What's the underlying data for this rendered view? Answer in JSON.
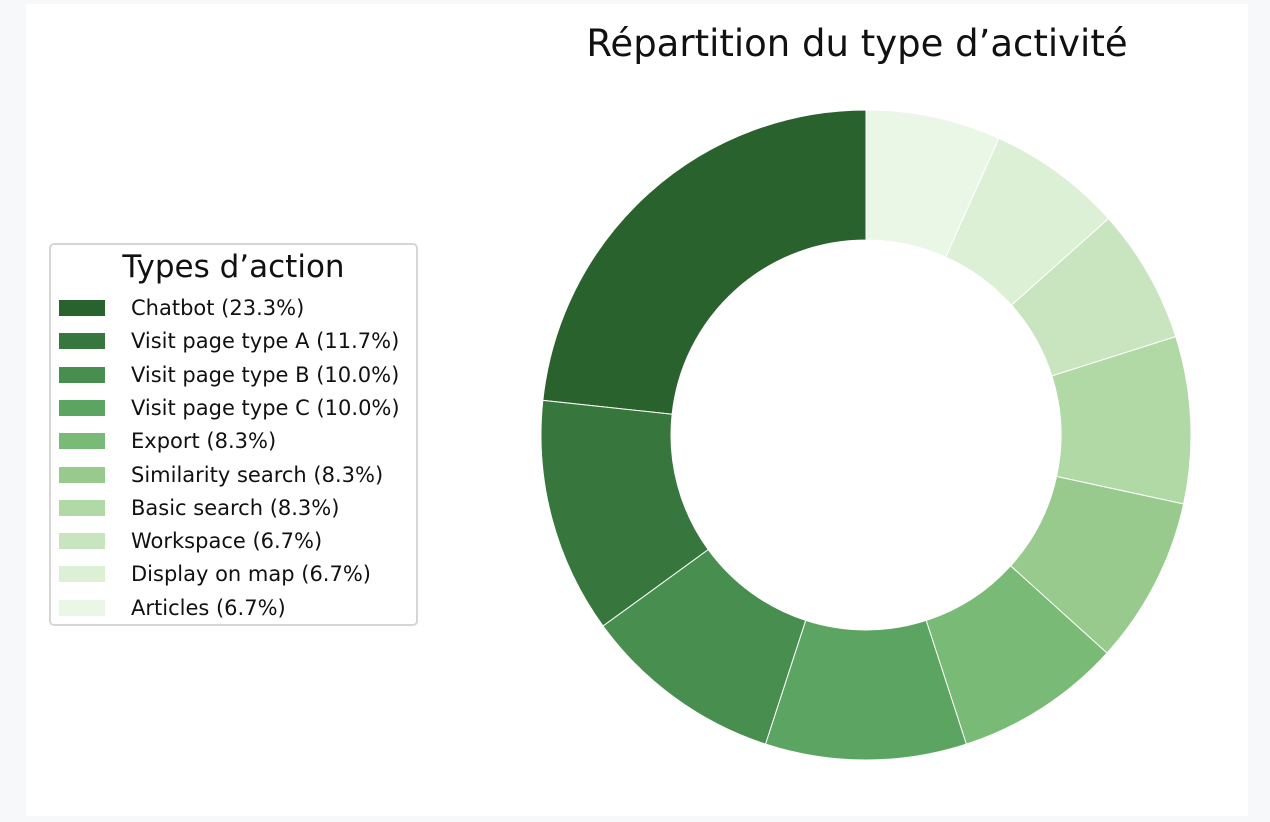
{
  "chart_data": {
    "type": "pie",
    "title": "Répartition du type d’activité",
    "legend": {
      "title": "Types d’action",
      "placement": "left"
    },
    "slices": [
      {
        "label": "Chatbot (23.3%)",
        "value": 23.3,
        "color": "#2a622e"
      },
      {
        "label": "Visit page type A (11.7%)",
        "value": 11.7,
        "color": "#37763d"
      },
      {
        "label": "Visit page type B (10.0%)",
        "value": 10.0,
        "color": "#488e4f"
      },
      {
        "label": "Visit page type C (10.0%)",
        "value": 10.0,
        "color": "#5ba462"
      },
      {
        "label": "Export (8.3%)",
        "value": 8.3,
        "color": "#7aba77"
      },
      {
        "label": "Similarity search (8.3%)",
        "value": 8.3,
        "color": "#97ca8c"
      },
      {
        "label": "Basic search (8.3%)",
        "value": 8.3,
        "color": "#b0d9a5"
      },
      {
        "label": "Workspace (6.7%)",
        "value": 6.7,
        "color": "#c9e5c0"
      },
      {
        "label": "Display on map (6.7%)",
        "value": 6.7,
        "color": "#dcf0d5"
      },
      {
        "label": "Articles (6.7%)",
        "value": 6.7,
        "color": "#eaf6e6"
      }
    ],
    "donut": true,
    "start": "top",
    "direction": "counterclockwise"
  }
}
